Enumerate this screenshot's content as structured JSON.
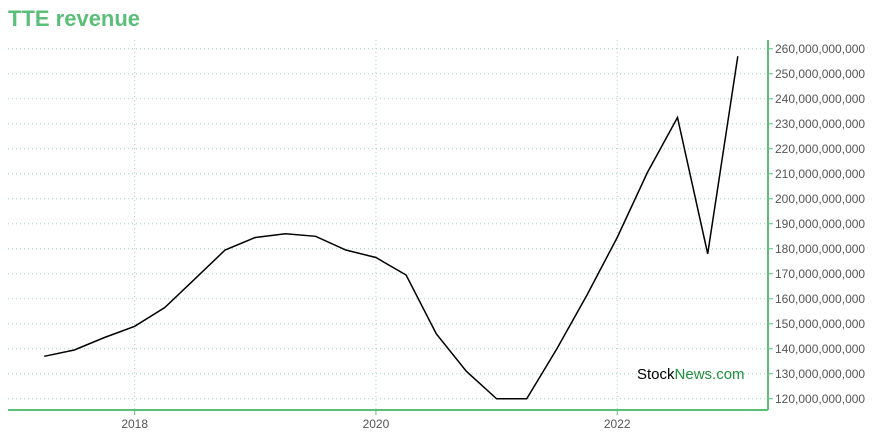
{
  "header": {
    "title": "TTE revenue"
  },
  "watermark": {
    "part1": "Stock",
    "part2": "News",
    "part3": ".com"
  },
  "colors": {
    "accent": "#5bbf7a",
    "line": "#000000",
    "grid": "#9fd3c0"
  },
  "chart_data": {
    "type": "line",
    "title": "TTE revenue",
    "xlabel": "",
    "ylabel": "",
    "x": [
      2017.25,
      2017.5,
      2017.75,
      2018.0,
      2018.25,
      2018.5,
      2018.75,
      2019.0,
      2019.25,
      2019.5,
      2019.75,
      2020.0,
      2020.25,
      2020.5,
      2020.75,
      2021.0,
      2021.25,
      2021.5,
      2021.75,
      2022.0,
      2022.25,
      2022.5,
      2022.75,
      2023.0
    ],
    "series": [
      {
        "values": [
          137000000000,
          139500000000,
          144500000000,
          149000000000,
          156500000000,
          168000000000,
          179500000000,
          184500000000,
          186000000000,
          185000000000,
          179500000000,
          176500000000,
          169500000000,
          146000000000,
          131000000000,
          120000000000,
          120000000000,
          140000000000,
          161500000000,
          184500000000,
          210500000000,
          232500000000,
          178000000000,
          257000000000
        ]
      }
    ],
    "xticks": [
      "2018",
      "2020",
      "2022"
    ],
    "xtick_values": [
      2018,
      2020,
      2022
    ],
    "yticks": [
      "120,000,000,000",
      "130,000,000,000",
      "140,000,000,000",
      "150,000,000,000",
      "160,000,000,000",
      "170,000,000,000",
      "180,000,000,000",
      "190,000,000,000",
      "200,000,000,000",
      "210,000,000,000",
      "220,000,000,000",
      "230,000,000,000",
      "240,000,000,000",
      "250,000,000,000",
      "260,000,000,000"
    ],
    "ytick_values": [
      120000000000,
      130000000000,
      140000000000,
      150000000000,
      160000000000,
      170000000000,
      180000000000,
      190000000000,
      200000000000,
      210000000000,
      220000000000,
      230000000000,
      240000000000,
      250000000000,
      260000000000
    ],
    "xlim": [
      2016.95,
      2023.25
    ],
    "ylim": [
      115500000000,
      263500000000
    ],
    "grid": true,
    "legend": "none"
  }
}
